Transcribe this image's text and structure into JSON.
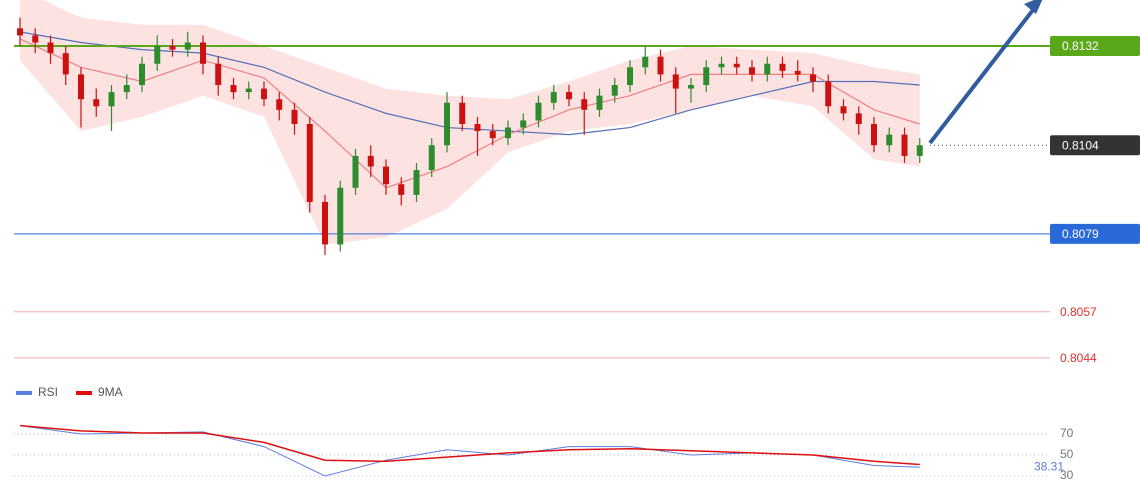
{
  "chart_data": [
    {
      "type": "candlestick",
      "open": [
        0.8137,
        0.8135,
        0.8133,
        0.813,
        0.8124,
        0.8117,
        0.8115,
        0.8119,
        0.8121,
        0.8127,
        0.8132,
        0.8131,
        0.8133,
        0.8127,
        0.8121,
        0.8119,
        0.812,
        0.8117,
        0.8114,
        0.811,
        0.8088,
        0.8076,
        0.8092,
        0.8101,
        0.8098,
        0.8093,
        0.809,
        0.8097,
        0.8104,
        0.8116,
        0.811,
        0.8108,
        0.8106,
        0.8109,
        0.8111,
        0.8116,
        0.8119,
        0.8117,
        0.8114,
        0.8118,
        0.8121,
        0.8126,
        0.8129,
        0.8124,
        0.812,
        0.8121,
        0.8126,
        0.8127,
        0.8126,
        0.8124,
        0.8127,
        0.8125,
        0.8124,
        0.8122,
        0.8115,
        0.8113,
        0.811,
        0.8104,
        0.8107,
        0.8101
      ],
      "high": [
        0.814,
        0.8137,
        0.8135,
        0.8132,
        0.8126,
        0.812,
        0.8121,
        0.8124,
        0.8129,
        0.8135,
        0.8134,
        0.8136,
        0.8135,
        0.8129,
        0.8123,
        0.8122,
        0.8122,
        0.8119,
        0.8116,
        0.8112,
        0.809,
        0.8094,
        0.8103,
        0.8104,
        0.81,
        0.8095,
        0.8099,
        0.8106,
        0.8119,
        0.8118,
        0.8112,
        0.811,
        0.8111,
        0.8113,
        0.8118,
        0.8121,
        0.8121,
        0.8119,
        0.812,
        0.8123,
        0.8128,
        0.8132,
        0.8131,
        0.8126,
        0.8123,
        0.8128,
        0.8129,
        0.8129,
        0.8128,
        0.8129,
        0.8129,
        0.8128,
        0.8126,
        0.8124,
        0.8117,
        0.8115,
        0.8112,
        0.8109,
        0.8109,
        0.8106
      ],
      "low": [
        0.8132,
        0.813,
        0.8127,
        0.8121,
        0.8109,
        0.8112,
        0.8108,
        0.8117,
        0.8119,
        0.8125,
        0.8129,
        0.8129,
        0.8124,
        0.8118,
        0.8117,
        0.8117,
        0.8115,
        0.8111,
        0.8107,
        0.8085,
        0.8073,
        0.8074,
        0.809,
        0.8095,
        0.809,
        0.8087,
        0.8088,
        0.8095,
        0.8102,
        0.8108,
        0.8101,
        0.8104,
        0.8104,
        0.8107,
        0.8109,
        0.8114,
        0.8115,
        0.8107,
        0.8112,
        0.8116,
        0.8119,
        0.8124,
        0.8122,
        0.8113,
        0.8116,
        0.8119,
        0.8124,
        0.8124,
        0.8122,
        0.8122,
        0.8123,
        0.8122,
        0.8119,
        0.8113,
        0.8111,
        0.8107,
        0.8102,
        0.8102,
        0.8099,
        0.8099
      ],
      "close": [
        0.8135,
        0.8133,
        0.813,
        0.8124,
        0.8117,
        0.8115,
        0.8119,
        0.8121,
        0.8127,
        0.8132,
        0.8131,
        0.8133,
        0.8127,
        0.8121,
        0.8119,
        0.812,
        0.8117,
        0.8114,
        0.811,
        0.8088,
        0.8076,
        0.8092,
        0.8101,
        0.8098,
        0.8093,
        0.809,
        0.8097,
        0.8104,
        0.8116,
        0.811,
        0.8108,
        0.8106,
        0.8109,
        0.8111,
        0.8116,
        0.8119,
        0.8117,
        0.8114,
        0.8118,
        0.8121,
        0.8126,
        0.8129,
        0.8124,
        0.812,
        0.8121,
        0.8126,
        0.8127,
        0.8126,
        0.8124,
        0.8127,
        0.8125,
        0.8124,
        0.8122,
        0.8115,
        0.8113,
        0.811,
        0.8104,
        0.8107,
        0.8101,
        0.8104
      ],
      "up_color": "#2e8b2e",
      "down_color": "#cc1111",
      "ylim": [
        0.804,
        0.8145
      ],
      "bands": {
        "x": [
          0,
          4,
          8,
          12,
          16,
          20,
          24,
          28,
          32,
          36,
          40,
          44,
          48,
          52,
          56,
          59
        ],
        "upper": [
          0.8148,
          0.814,
          0.8138,
          0.8138,
          0.8132,
          0.8126,
          0.812,
          0.8118,
          0.8117,
          0.8122,
          0.8128,
          0.8132,
          0.8131,
          0.813,
          0.8126,
          0.8124
        ],
        "lower": [
          0.8128,
          0.8108,
          0.8112,
          0.8118,
          0.8112,
          0.8076,
          0.8078,
          0.8086,
          0.8102,
          0.8108,
          0.811,
          0.8114,
          0.8118,
          0.8115,
          0.81,
          0.8098
        ],
        "color": "#fde2e2"
      },
      "series": [
        {
          "color": "#5570b8",
          "values": [
            0.8136,
            0.8133,
            0.8131,
            0.813,
            0.8126,
            0.8119,
            0.8113,
            0.8109,
            0.8108,
            0.8107,
            0.8109,
            0.8114,
            0.8118,
            0.8122,
            0.8122,
            0.8121
          ]
        },
        {
          "color": "#f08080",
          "values": [
            0.8134,
            0.8126,
            0.8122,
            0.8128,
            0.8123,
            0.8108,
            0.8092,
            0.8098,
            0.8107,
            0.8114,
            0.8118,
            0.8124,
            0.8124,
            0.8124,
            0.8114,
            0.811
          ]
        }
      ],
      "levels": [
        {
          "value": 0.8132,
          "color": "#5aa71a",
          "style": "box"
        },
        {
          "value": 0.8104,
          "color": "#333333",
          "style": "box"
        },
        {
          "value": 0.8079,
          "color": "#2a6ad8",
          "style": "box"
        },
        {
          "value": 0.8057,
          "color": "#e03030",
          "style": "text"
        },
        {
          "value": 0.8044,
          "color": "#e03030",
          "style": "text"
        }
      ]
    },
    {
      "type": "line",
      "x": [
        0,
        4,
        8,
        12,
        16,
        20,
        24,
        28,
        32,
        36,
        40,
        44,
        48,
        52,
        56,
        59
      ],
      "ylim": [
        20,
        100
      ],
      "yticks": [
        70,
        50,
        30
      ],
      "series": [
        {
          "name": "RSI",
          "color": "#5b7fe0",
          "values": [
            78,
            70,
            71,
            72,
            58,
            30,
            45,
            55,
            50,
            58,
            58,
            50,
            52,
            50,
            40,
            38.31
          ]
        },
        {
          "name": "9MA",
          "color": "#e01010",
          "values": [
            78,
            73,
            71,
            71,
            62,
            45,
            44,
            48,
            52,
            55,
            56,
            54,
            52,
            50,
            44,
            41
          ]
        }
      ]
    }
  ]
}
